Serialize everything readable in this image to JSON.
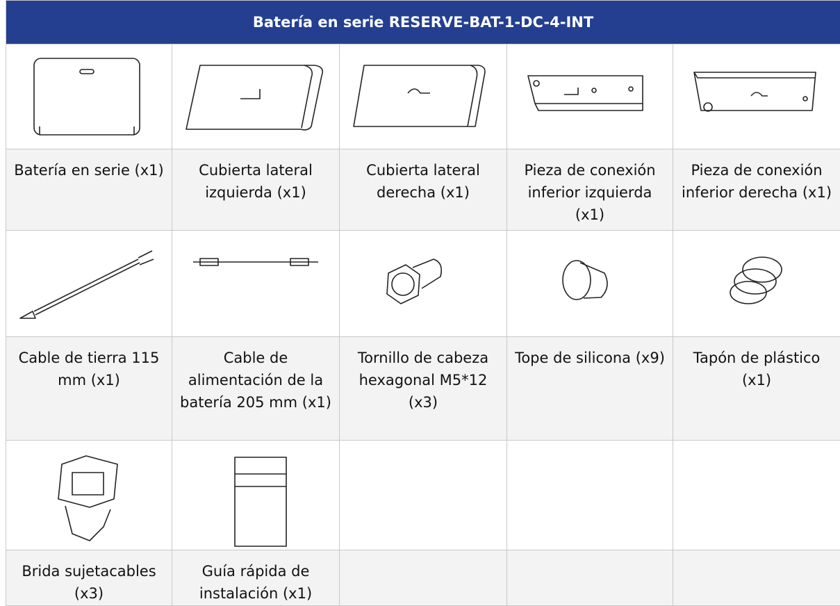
{
  "header": {
    "title": "Batería en serie RESERVE-BAT-1-DC-4-INT"
  },
  "table": {
    "rows": [
      [
        "Batería en serie (x1)",
        "Cubierta lateral izquierda (x1)",
        "Cubierta lateral derecha (x1)",
        "Pieza de conexión inferior izquierda (x1)",
        "Pieza de conexión inferior derecha (x1)"
      ],
      [
        "Cable de tierra 115 mm (x1)",
        "Cable de alimentación de la batería 205 mm (x1)",
        "Tornillo de cabeza hexagonal M5*12 (x3)",
        "Tope de silicona (x9)",
        "Tapón de plástico (x1)"
      ],
      [
        "Brida sujetacables (x3)",
        "Guía rápida de instalación (x1)"
      ]
    ]
  }
}
